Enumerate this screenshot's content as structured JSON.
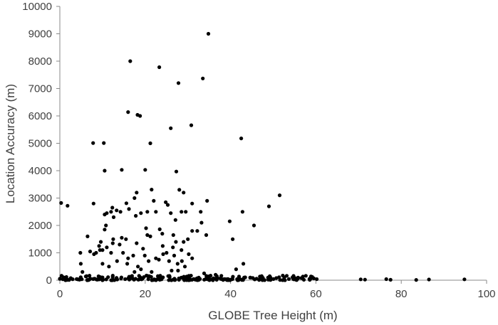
{
  "chart_data": {
    "type": "scatter",
    "title": "",
    "xlabel": "GLOBE Tree Height (m)",
    "ylabel": "Location Accuracy (m)",
    "xlim": [
      0,
      100
    ],
    "ylim": [
      0,
      10000
    ],
    "x_ticks": [
      0,
      20,
      40,
      60,
      80,
      100
    ],
    "y_ticks": [
      0,
      1000,
      2000,
      3000,
      4000,
      5000,
      6000,
      7000,
      8000,
      9000,
      10000
    ],
    "grid": false,
    "legend": "none",
    "marker_color": "#000000",
    "axis_color": "#888888",
    "series": [
      {
        "points": [
          [
            34.8,
            9000
          ],
          [
            16.5,
            8000
          ],
          [
            23.3,
            7780
          ],
          [
            33.5,
            7370
          ],
          [
            27.8,
            7200
          ],
          [
            16.0,
            6140
          ],
          [
            18.2,
            6040
          ],
          [
            18.8,
            6000
          ],
          [
            30.8,
            5660
          ],
          [
            26.0,
            5550
          ],
          [
            42.5,
            5180
          ],
          [
            7.8,
            5010
          ],
          [
            10.3,
            5010
          ],
          [
            21.2,
            5000
          ],
          [
            10.5,
            4000
          ],
          [
            14.5,
            4030
          ],
          [
            20.0,
            4030
          ],
          [
            27.3,
            3970
          ],
          [
            21.5,
            3310
          ],
          [
            18.0,
            3200
          ],
          [
            28.0,
            3300
          ],
          [
            29.0,
            3200
          ],
          [
            51.5,
            3100
          ],
          [
            17.5,
            3000
          ],
          [
            22.0,
            2900
          ],
          [
            0.3,
            2820
          ],
          [
            1.8,
            2720
          ],
          [
            7.9,
            2800
          ],
          [
            15.6,
            2810
          ],
          [
            34.5,
            2900
          ],
          [
            31.0,
            2800
          ],
          [
            24.8,
            2850
          ],
          [
            25.3,
            2750
          ],
          [
            49.0,
            2700
          ],
          [
            10.5,
            2400
          ],
          [
            11.0,
            2450
          ],
          [
            12.0,
            2500
          ],
          [
            12.3,
            2650
          ],
          [
            13.3,
            2550
          ],
          [
            14.2,
            2500
          ],
          [
            16.2,
            2600
          ],
          [
            19.0,
            2450
          ],
          [
            20.5,
            2500
          ],
          [
            22.5,
            2500
          ],
          [
            26.0,
            2450
          ],
          [
            28.5,
            2500
          ],
          [
            29.5,
            2500
          ],
          [
            33.0,
            2500
          ],
          [
            42.8,
            2500
          ],
          [
            12.6,
            2300
          ],
          [
            17.8,
            2350
          ],
          [
            27.1,
            2200
          ],
          [
            33.2,
            2100
          ],
          [
            39.8,
            2150
          ],
          [
            45.5,
            2000
          ],
          [
            10.8,
            2000
          ],
          [
            20.2,
            1900
          ],
          [
            23.4,
            1860
          ],
          [
            26.6,
            1650
          ],
          [
            24.0,
            1700
          ],
          [
            31.0,
            1800
          ],
          [
            32.2,
            1800
          ],
          [
            6.5,
            1600
          ],
          [
            10.5,
            1850
          ],
          [
            12.5,
            1500
          ],
          [
            14.5,
            1550
          ],
          [
            15.5,
            1500
          ],
          [
            20.5,
            1650
          ],
          [
            21.2,
            1600
          ],
          [
            27.2,
            1400
          ],
          [
            29.0,
            1400
          ],
          [
            34.3,
            1650
          ],
          [
            9.2,
            1250
          ],
          [
            9.6,
            1400
          ],
          [
            10.0,
            1100
          ],
          [
            11.0,
            1200
          ],
          [
            12.4,
            1350
          ],
          [
            12.0,
            1000
          ],
          [
            14.0,
            1300
          ],
          [
            18.0,
            1350
          ],
          [
            19.5,
            1150
          ],
          [
            24.1,
            1250
          ],
          [
            25.0,
            1000
          ],
          [
            26.5,
            1200
          ],
          [
            28.5,
            1100
          ],
          [
            30.0,
            1500
          ],
          [
            40.5,
            1500
          ],
          [
            4.8,
            1000
          ],
          [
            7.1,
            1050
          ],
          [
            8.0,
            950
          ],
          [
            8.5,
            1000
          ],
          [
            9.4,
            1100
          ],
          [
            13.4,
            700
          ],
          [
            14.8,
            1000
          ],
          [
            16.0,
            800
          ],
          [
            17.2,
            900
          ],
          [
            18.3,
            500
          ],
          [
            19.9,
            900
          ],
          [
            20.8,
            700
          ],
          [
            22.5,
            800
          ],
          [
            23.2,
            750
          ],
          [
            24.2,
            950
          ],
          [
            25.6,
            700
          ],
          [
            26.8,
            900
          ],
          [
            27.6,
            600
          ],
          [
            28.6,
            700
          ],
          [
            29.3,
            500
          ],
          [
            30.2,
            950
          ],
          [
            31.0,
            800
          ],
          [
            10.0,
            600
          ],
          [
            11.5,
            500
          ],
          [
            15.8,
            600
          ],
          [
            17.5,
            300
          ],
          [
            19.0,
            400
          ],
          [
            21.5,
            300
          ],
          [
            26.2,
            350
          ],
          [
            27.7,
            350
          ],
          [
            33.8,
            250
          ],
          [
            41.3,
            400
          ],
          [
            43.0,
            600
          ],
          [
            36.5,
            200
          ],
          [
            4.9,
            600
          ],
          [
            5.3,
            300
          ]
        ],
        "low_band": {
          "x_range": [
            0,
            61
          ],
          "y_range": [
            0,
            170
          ],
          "count": 240
        },
        "low_outliers": [
          [
            70.5,
            30
          ],
          [
            71.5,
            20
          ],
          [
            76.5,
            40
          ],
          [
            77.5,
            15
          ],
          [
            83.5,
            10
          ],
          [
            86.5,
            25
          ],
          [
            94.8,
            30
          ],
          [
            58.5,
            50
          ],
          [
            60.2,
            40
          ],
          [
            55.8,
            60
          ]
        ]
      }
    ]
  }
}
